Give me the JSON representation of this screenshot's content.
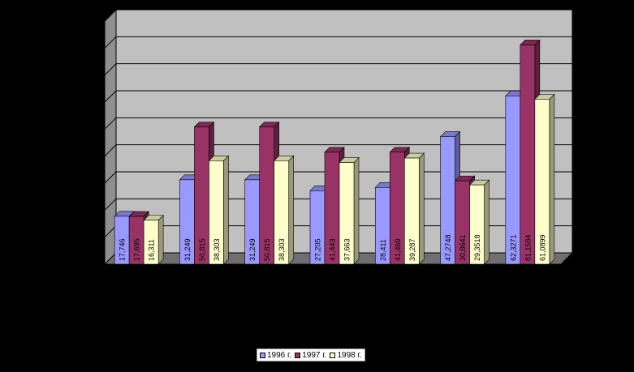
{
  "chart_data": {
    "type": "bar",
    "title": "",
    "xlabel": "",
    "ylabel": "",
    "categories": [
      "",
      "",
      "",
      "",
      "",
      "",
      ""
    ],
    "ylim": [
      0,
      90
    ],
    "grid": true,
    "legend_position": "bottom",
    "series": [
      {
        "name": "1996 г.",
        "color": "#9999ff",
        "values": [
          17.746,
          31.249,
          31.249,
          27.205,
          28.411,
          47.2748,
          62.3271
        ],
        "labels": [
          "17,746",
          "31,249",
          "31,249",
          "27,205",
          "28,411",
          "47,2748",
          "62,3271"
        ]
      },
      {
        "name": "1997 г.",
        "color": "#993366",
        "values": [
          17.695,
          50.815,
          50.815,
          41.443,
          41.469,
          30.8641,
          81.1584
        ],
        "labels": [
          "17,695",
          "50,815",
          "50,815",
          "41,443",
          "41,469",
          "30,8641",
          "81,1584"
        ]
      },
      {
        "name": "1998 г.",
        "color": "#ffffcc",
        "values": [
          16.311,
          38.303,
          38.303,
          37.663,
          39.287,
          29.3518,
          61.0899
        ],
        "labels": [
          "16,311",
          "38,303",
          "38,303",
          "37,663",
          "39,287",
          "29,3518",
          "61,0899"
        ]
      }
    ]
  }
}
